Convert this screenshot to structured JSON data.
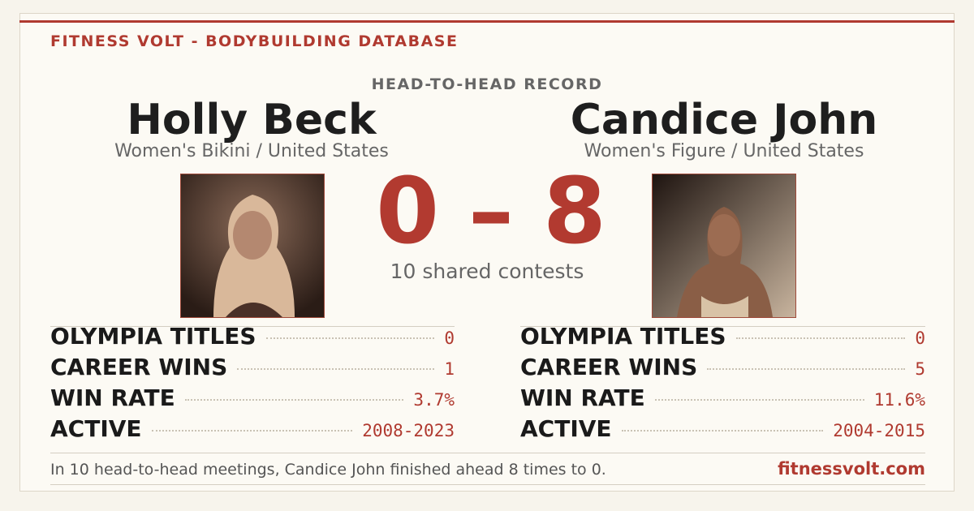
{
  "header": {
    "brand": "FITNESS VOLT - BODYBUILDING DATABASE",
    "section": "HEAD-TO-HEAD RECORD"
  },
  "left": {
    "name": "Holly Beck",
    "division": "Women's Bikini / United States",
    "stats": [
      {
        "label": "OLYMPIA TITLES",
        "value": 0
      },
      {
        "label": "CAREER WINS",
        "value": 1
      },
      {
        "label": "WIN RATE",
        "value": "3.7%"
      },
      {
        "label": "ACTIVE",
        "value": "2008-2023"
      }
    ]
  },
  "right": {
    "name": "Candice John",
    "division": "Women's Figure / United States",
    "stats": [
      {
        "label": "OLYMPIA TITLES",
        "value": 0
      },
      {
        "label": "CAREER WINS",
        "value": 5
      },
      {
        "label": "WIN RATE",
        "value": "11.6%"
      },
      {
        "label": "ACTIVE",
        "value": "2004-2015"
      }
    ]
  },
  "score": {
    "left": 0,
    "separator": "–",
    "right": 8,
    "caption": "10 shared contests"
  },
  "footer": {
    "summary": "In 10 head-to-head meetings, Candice John finished ahead 8 times to 0.",
    "site": "fitnessvolt.com"
  }
}
